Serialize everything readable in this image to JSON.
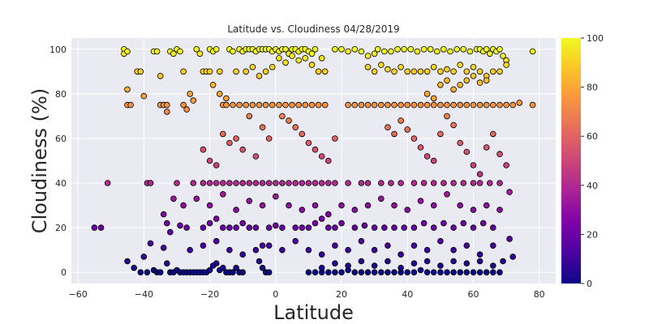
{
  "chart_data": {
    "type": "scatter",
    "title": "Latitude vs. Cloudiness 04/28/2019",
    "xlabel": "Latitude",
    "ylabel": "Cloudiness (%)",
    "xlim": [
      -62,
      85
    ],
    "ylim": [
      -5,
      105
    ],
    "x_ticks": [
      -60,
      -40,
      -20,
      0,
      20,
      40,
      60,
      80
    ],
    "y_ticks": [
      0,
      20,
      40,
      60,
      80,
      100
    ],
    "grid": true,
    "background": "#eaeaf2",
    "colormap": "plasma",
    "colorbar": {
      "min": 0,
      "max": 100,
      "ticks": [
        0,
        20,
        40,
        60,
        80,
        100
      ]
    },
    "marker_edge": "#000000",
    "points": [
      [
        -55,
        20
      ],
      [
        -53,
        20
      ],
      [
        -51,
        40
      ],
      [
        -46,
        100
      ],
      [
        -46,
        98
      ],
      [
        -45,
        99
      ],
      [
        -45,
        82
      ],
      [
        -45,
        75
      ],
      [
        -44,
        75
      ],
      [
        -42,
        90
      ],
      [
        -41,
        90
      ],
      [
        -40,
        79
      ],
      [
        -39,
        40
      ],
      [
        -38,
        40
      ],
      [
        -37,
        99
      ],
      [
        -36,
        99
      ],
      [
        -35,
        88
      ],
      [
        -35,
        75
      ],
      [
        -34,
        75
      ],
      [
        -33,
        72
      ],
      [
        -33,
        75
      ],
      [
        -32,
        99
      ],
      [
        -31,
        98
      ],
      [
        -30,
        100
      ],
      [
        -29,
        99
      ],
      [
        -28,
        90
      ],
      [
        -28,
        75
      ],
      [
        -27,
        73
      ],
      [
        -26,
        80
      ],
      [
        -25,
        77
      ],
      [
        -24,
        100
      ],
      [
        -23,
        98
      ],
      [
        -22,
        90
      ],
      [
        -21,
        90
      ],
      [
        -20,
        90
      ],
      [
        -20,
        100
      ],
      [
        -19,
        99
      ],
      [
        -18,
        100
      ],
      [
        -17,
        90
      ],
      [
        -16,
        75
      ],
      [
        -15,
        75
      ],
      [
        -14,
        100
      ],
      [
        -13,
        99
      ],
      [
        -12,
        90
      ],
      [
        -11,
        100
      ],
      [
        -10,
        99
      ],
      [
        -9,
        100
      ],
      [
        -8,
        100
      ],
      [
        -7,
        100
      ],
      [
        -6,
        99
      ],
      [
        -5,
        100
      ],
      [
        -4,
        100
      ],
      [
        -3,
        100
      ],
      [
        -2,
        100
      ],
      [
        -1,
        99
      ],
      [
        0,
        100
      ],
      [
        1,
        99
      ],
      [
        2,
        100
      ],
      [
        3,
        100
      ],
      [
        4,
        98
      ],
      [
        5,
        100
      ],
      [
        6,
        100
      ],
      [
        7,
        99
      ],
      [
        8,
        100
      ],
      [
        9,
        100
      ],
      [
        10,
        99
      ],
      [
        11,
        98
      ],
      [
        12,
        100
      ],
      [
        14,
        96
      ],
      [
        15,
        90
      ],
      [
        -9,
        90
      ],
      [
        -7,
        92
      ],
      [
        -5,
        88
      ],
      [
        -3,
        90
      ],
      [
        -1,
        92
      ],
      [
        1,
        96
      ],
      [
        3,
        94
      ],
      [
        5,
        97
      ],
      [
        7,
        95
      ],
      [
        9,
        96
      ],
      [
        11,
        93
      ],
      [
        13,
        90
      ],
      [
        -19,
        84
      ],
      [
        -17,
        80
      ],
      [
        -15,
        78
      ],
      [
        -13,
        75
      ],
      [
        -11,
        75
      ],
      [
        -9,
        75
      ],
      [
        -7,
        75
      ],
      [
        -5,
        75
      ],
      [
        -3,
        75
      ],
      [
        -1,
        75
      ],
      [
        1,
        75
      ],
      [
        3,
        75
      ],
      [
        5,
        75
      ],
      [
        7,
        75
      ],
      [
        9,
        75
      ],
      [
        11,
        75
      ],
      [
        13,
        75
      ],
      [
        15,
        75
      ],
      [
        18,
        100
      ],
      [
        20,
        100
      ],
      [
        22,
        99
      ],
      [
        24,
        100
      ],
      [
        26,
        99
      ],
      [
        28,
        97
      ],
      [
        30,
        98
      ],
      [
        31,
        100
      ],
      [
        33,
        99
      ],
      [
        35,
        99
      ],
      [
        37,
        100
      ],
      [
        39,
        100
      ],
      [
        41,
        100
      ],
      [
        43,
        99
      ],
      [
        45,
        100
      ],
      [
        47,
        100
      ],
      [
        49,
        99
      ],
      [
        51,
        100
      ],
      [
        53,
        99
      ],
      [
        55,
        100
      ],
      [
        57,
        100
      ],
      [
        59,
        99
      ],
      [
        61,
        100
      ],
      [
        62,
        100
      ],
      [
        63,
        99
      ],
      [
        64,
        100
      ],
      [
        65,
        98
      ],
      [
        66,
        100
      ],
      [
        67,
        99
      ],
      [
        68,
        100
      ],
      [
        69,
        97
      ],
      [
        70,
        95
      ],
      [
        78,
        99
      ],
      [
        28,
        92
      ],
      [
        30,
        90
      ],
      [
        32,
        93
      ],
      [
        34,
        91
      ],
      [
        36,
        90
      ],
      [
        38,
        92
      ],
      [
        40,
        90
      ],
      [
        42,
        90
      ],
      [
        44,
        90
      ],
      [
        46,
        90
      ],
      [
        48,
        92
      ],
      [
        50,
        90
      ],
      [
        52,
        91
      ],
      [
        54,
        90
      ],
      [
        56,
        93
      ],
      [
        58,
        90
      ],
      [
        60,
        92
      ],
      [
        62,
        90
      ],
      [
        64,
        88
      ],
      [
        66,
        90
      ],
      [
        68,
        90
      ],
      [
        70,
        93
      ],
      [
        22,
        75
      ],
      [
        24,
        75
      ],
      [
        26,
        75
      ],
      [
        28,
        75
      ],
      [
        30,
        75
      ],
      [
        32,
        75
      ],
      [
        34,
        75
      ],
      [
        36,
        75
      ],
      [
        38,
        75
      ],
      [
        40,
        75
      ],
      [
        42,
        75
      ],
      [
        44,
        75
      ],
      [
        46,
        75
      ],
      [
        48,
        75
      ],
      [
        50,
        75
      ],
      [
        52,
        75
      ],
      [
        54,
        75
      ],
      [
        56,
        75
      ],
      [
        58,
        75
      ],
      [
        60,
        75
      ],
      [
        62,
        75
      ],
      [
        64,
        75
      ],
      [
        66,
        75
      ],
      [
        68,
        75
      ],
      [
        70,
        75
      ],
      [
        72,
        75
      ],
      [
        74,
        76
      ],
      [
        78,
        75
      ],
      [
        50,
        84
      ],
      [
        52,
        86
      ],
      [
        54,
        82
      ],
      [
        56,
        84
      ],
      [
        58,
        86
      ],
      [
        60,
        88
      ],
      [
        62,
        85
      ],
      [
        64,
        86
      ],
      [
        46,
        80
      ],
      [
        48,
        78
      ],
      [
        -45,
        5
      ],
      [
        -43,
        2
      ],
      [
        -41,
        0
      ],
      [
        -40,
        7
      ],
      [
        -39,
        0
      ],
      [
        -38,
        13
      ],
      [
        -37,
        1
      ],
      [
        -36,
        0
      ],
      [
        -35,
        0
      ],
      [
        -34,
        11
      ],
      [
        -33,
        4
      ],
      [
        -32,
        0
      ],
      [
        -31,
        0
      ],
      [
        -30,
        1
      ],
      [
        -29,
        0
      ],
      [
        -28,
        0
      ],
      [
        -27,
        0
      ],
      [
        -26,
        0
      ],
      [
        -25,
        0
      ],
      [
        -24,
        0
      ],
      [
        -23,
        0
      ],
      [
        -22,
        0
      ],
      [
        -21,
        0
      ],
      [
        -20,
        1
      ],
      [
        -19,
        3
      ],
      [
        -18,
        4
      ],
      [
        -17,
        1
      ],
      [
        -16,
        2
      ],
      [
        -15,
        0
      ],
      [
        -14,
        0
      ],
      [
        -13,
        0
      ],
      [
        -12,
        2
      ],
      [
        -11,
        0
      ],
      [
        -10,
        0
      ],
      [
        -5,
        5
      ],
      [
        -4,
        2
      ],
      [
        -3,
        0
      ],
      [
        -2,
        0
      ],
      [
        10,
        0
      ],
      [
        12,
        0
      ],
      [
        14,
        0
      ],
      [
        16,
        0
      ],
      [
        18,
        0
      ],
      [
        20,
        0
      ],
      [
        22,
        1
      ],
      [
        24,
        0
      ],
      [
        26,
        0
      ],
      [
        28,
        0
      ],
      [
        30,
        0
      ],
      [
        32,
        0
      ],
      [
        34,
        0
      ],
      [
        36,
        0
      ],
      [
        38,
        0
      ],
      [
        40,
        0
      ],
      [
        42,
        0
      ],
      [
        44,
        1
      ],
      [
        46,
        0
      ],
      [
        48,
        0
      ],
      [
        50,
        0
      ],
      [
        52,
        0
      ],
      [
        54,
        0
      ],
      [
        56,
        0
      ],
      [
        58,
        0
      ],
      [
        60,
        0
      ],
      [
        62,
        0
      ],
      [
        64,
        0
      ],
      [
        66,
        0
      ],
      [
        68,
        0
      ],
      [
        14,
        2
      ],
      [
        18,
        4
      ],
      [
        22,
        3
      ],
      [
        26,
        5
      ],
      [
        30,
        3
      ],
      [
        34,
        5
      ],
      [
        38,
        2
      ],
      [
        42,
        4
      ],
      [
        46,
        5
      ],
      [
        50,
        3
      ],
      [
        54,
        5
      ],
      [
        58,
        4
      ],
      [
        62,
        5
      ],
      [
        66,
        3
      ],
      [
        69,
        5
      ],
      [
        72,
        7
      ],
      [
        -34,
        26
      ],
      [
        -33,
        22
      ],
      [
        -32,
        18
      ],
      [
        -31,
        33
      ],
      [
        -29,
        21
      ],
      [
        -27,
        20
      ],
      [
        -22,
        20
      ],
      [
        -20,
        22
      ],
      [
        -18,
        24
      ],
      [
        -16,
        20
      ],
      [
        -14,
        20
      ],
      [
        -12,
        20
      ],
      [
        -10,
        22
      ],
      [
        -8,
        20
      ],
      [
        -6,
        20
      ],
      [
        -4,
        12
      ],
      [
        -2,
        20
      ],
      [
        0,
        21
      ],
      [
        2,
        20
      ],
      [
        6,
        20
      ],
      [
        8,
        20
      ],
      [
        10,
        20
      ],
      [
        12,
        22
      ],
      [
        14,
        24
      ],
      [
        16,
        20
      ],
      [
        18,
        20
      ],
      [
        20,
        22
      ],
      [
        24,
        20
      ],
      [
        27,
        21
      ],
      [
        30,
        20
      ],
      [
        33,
        20
      ],
      [
        36,
        20
      ],
      [
        39,
        20
      ],
      [
        42,
        20
      ],
      [
        45,
        22
      ],
      [
        48,
        20
      ],
      [
        51,
        22
      ],
      [
        54,
        20
      ],
      [
        57,
        22
      ],
      [
        60,
        20
      ],
      [
        63,
        22
      ],
      [
        66,
        20
      ],
      [
        71,
        15
      ],
      [
        -38,
        40
      ],
      [
        -30,
        40
      ],
      [
        -25,
        40
      ],
      [
        -22,
        40
      ],
      [
        -20,
        40
      ],
      [
        -18,
        40
      ],
      [
        -16,
        40
      ],
      [
        -14,
        40
      ],
      [
        -12,
        40
      ],
      [
        -10,
        40
      ],
      [
        -8,
        40
      ],
      [
        -6,
        40
      ],
      [
        -4,
        40
      ],
      [
        -2,
        40
      ],
      [
        0,
        40
      ],
      [
        2,
        40
      ],
      [
        4,
        40
      ],
      [
        6,
        40
      ],
      [
        8,
        40
      ],
      [
        10,
        40
      ],
      [
        12,
        40
      ],
      [
        14,
        40
      ],
      [
        16,
        40
      ],
      [
        18,
        40
      ],
      [
        22,
        40
      ],
      [
        26,
        40
      ],
      [
        28,
        40
      ],
      [
        32,
        40
      ],
      [
        35,
        40
      ],
      [
        38,
        40
      ],
      [
        42,
        40
      ],
      [
        45,
        40
      ],
      [
        48,
        40
      ],
      [
        51,
        40
      ],
      [
        54,
        40
      ],
      [
        57,
        40
      ],
      [
        60,
        40
      ],
      [
        62,
        40
      ],
      [
        65,
        40
      ],
      [
        68,
        40
      ],
      [
        71,
        36
      ],
      [
        -22,
        55
      ],
      [
        -20,
        50
      ],
      [
        -18,
        48
      ],
      [
        -16,
        62
      ],
      [
        -14,
        58
      ],
      [
        -12,
        60
      ],
      [
        -10,
        55
      ],
      [
        -8,
        70
      ],
      [
        -6,
        52
      ],
      [
        -4,
        65
      ],
      [
        -2,
        60
      ],
      [
        2,
        70
      ],
      [
        4,
        68
      ],
      [
        6,
        65
      ],
      [
        8,
        62
      ],
      [
        10,
        58
      ],
      [
        12,
        55
      ],
      [
        14,
        52
      ],
      [
        16,
        50
      ],
      [
        18,
        60
      ],
      [
        34,
        65
      ],
      [
        36,
        62
      ],
      [
        38,
        68
      ],
      [
        40,
        64
      ],
      [
        42,
        60
      ],
      [
        44,
        56
      ],
      [
        46,
        52
      ],
      [
        48,
        50
      ],
      [
        50,
        62
      ],
      [
        52,
        70
      ],
      [
        54,
        66
      ],
      [
        56,
        58
      ],
      [
        58,
        54
      ],
      [
        60,
        48
      ],
      [
        62,
        44
      ],
      [
        64,
        56
      ],
      [
        66,
        62
      ],
      [
        68,
        53
      ],
      [
        70,
        48
      ],
      [
        -28,
        30
      ],
      [
        -24,
        33
      ],
      [
        -20,
        30
      ],
      [
        -16,
        35
      ],
      [
        -12,
        28
      ],
      [
        -8,
        32
      ],
      [
        -4,
        30
      ],
      [
        0,
        34
      ],
      [
        4,
        30
      ],
      [
        8,
        28
      ],
      [
        12,
        30
      ],
      [
        16,
        26
      ],
      [
        20,
        30
      ],
      [
        24,
        28
      ],
      [
        28,
        30
      ],
      [
        32,
        33
      ],
      [
        36,
        30
      ],
      [
        40,
        28
      ],
      [
        44,
        32
      ],
      [
        48,
        30
      ],
      [
        52,
        35
      ],
      [
        56,
        30
      ],
      [
        60,
        28
      ],
      [
        64,
        30
      ],
      [
        68,
        28
      ],
      [
        -26,
        10
      ],
      [
        -22,
        12
      ],
      [
        -18,
        14
      ],
      [
        -14,
        10
      ],
      [
        -10,
        8
      ],
      [
        -6,
        10
      ],
      [
        -2,
        12
      ],
      [
        2,
        10
      ],
      [
        6,
        14
      ],
      [
        10,
        10
      ],
      [
        14,
        8
      ],
      [
        18,
        12
      ],
      [
        22,
        10
      ],
      [
        26,
        14
      ],
      [
        30,
        10
      ],
      [
        34,
        12
      ],
      [
        38,
        8
      ],
      [
        42,
        12
      ],
      [
        46,
        10
      ],
      [
        50,
        14
      ],
      [
        54,
        10
      ],
      [
        58,
        12
      ],
      [
        62,
        8
      ],
      [
        66,
        12
      ]
    ]
  }
}
